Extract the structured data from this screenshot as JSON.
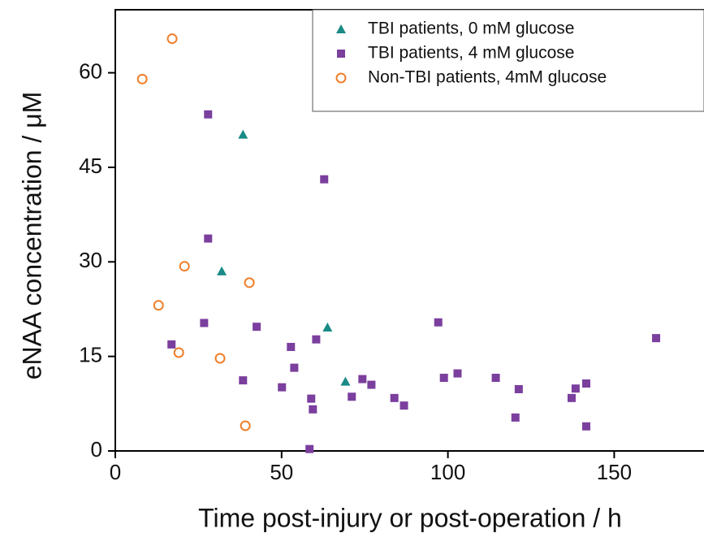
{
  "chart_data": {
    "type": "scatter",
    "x_label": "Time post-injury or post-operation / h",
    "y_label": "eNAA concentration / μM",
    "xlim": [
      0,
      177
    ],
    "ylim": [
      0,
      70
    ],
    "xticks": [
      0,
      50,
      100,
      150
    ],
    "yticks": [
      0,
      15,
      30,
      45,
      60
    ],
    "legend": "upper right",
    "series": [
      {
        "name": "TBI patients, 0 mM glucose",
        "color": "#1a8a86",
        "marker": "triangle",
        "x": [
          38.4,
          32,
          63.8,
          69.2
        ],
        "y": [
          50.2,
          28.5,
          19.6,
          11
        ]
      },
      {
        "name": "TBI patients, 4 mM glucose",
        "color": "#7b3f9e",
        "marker": "square",
        "x": [
          27.9,
          27.9,
          62.8,
          26.7,
          16.9,
          38.4,
          42.5,
          52.8,
          53.8,
          50.1,
          60.4,
          58.9,
          59.4,
          58.4,
          74.3,
          77.0,
          71.1,
          83.9,
          86.8,
          97.1,
          98.8,
          102.9,
          114.4,
          121.3,
          120.3,
          137.2,
          138.4,
          141.6,
          141.6,
          162.6
        ],
        "y": [
          53.4,
          33.7,
          43.1,
          20.3,
          16.9,
          11.2,
          19.7,
          16.5,
          13.2,
          10.1,
          17.7,
          8.3,
          6.6,
          0.3,
          11.4,
          10.5,
          8.6,
          8.4,
          7.2,
          20.4,
          11.6,
          12.3,
          11.6,
          9.8,
          5.3,
          8.4,
          9.9,
          10.7,
          3.9,
          17.9
        ]
      },
      {
        "name": "Non-TBI patients, 4mM glucose",
        "color": "#f07f2a",
        "marker": "circle",
        "x": [
          8.1,
          17.1,
          20.8,
          13.0,
          19.1,
          31.5,
          40.3,
          39.1
        ],
        "y": [
          59.0,
          65.4,
          29.3,
          23.1,
          15.6,
          14.7,
          26.7,
          4.0
        ]
      }
    ]
  }
}
